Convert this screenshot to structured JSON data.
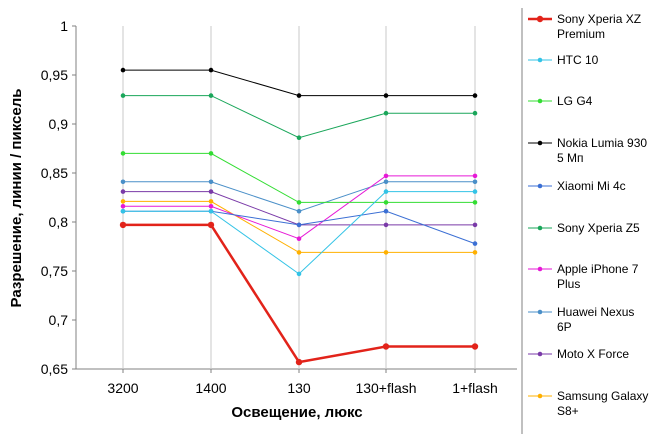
{
  "chart_data": {
    "type": "line",
    "xlabel": "Освещение,  люкс",
    "ylabel": "Разрешение,  линии / пиксель",
    "categories": [
      "3200",
      "1400",
      "130",
      "130+flash",
      "1+flash"
    ],
    "ylim": [
      0.65,
      1.0
    ],
    "yticks": [
      0.65,
      0.7,
      0.75,
      0.8,
      0.85,
      0.9,
      0.95,
      1.0
    ],
    "ytick_labels": [
      "0,65",
      "0,7",
      "0,75",
      "0,8",
      "0,85",
      "0,9",
      "0,95",
      "1"
    ],
    "grid": "vertical",
    "legend_position": "right",
    "series": [
      {
        "name": "Sony Xperia XZ Premium",
        "name_lines": [
          "Sony Xperia XZ",
          "Premium"
        ],
        "color": "#e2231a",
        "width": 2.5,
        "values": [
          0.797,
          0.797,
          0.657,
          0.673,
          0.673
        ]
      },
      {
        "name": "HTC 10",
        "name_lines": [
          "HTC 10"
        ],
        "color": "#33c3e6",
        "width": 1,
        "values": [
          0.811,
          0.811,
          0.747,
          0.831,
          0.831
        ]
      },
      {
        "name": "LG G4",
        "name_lines": [
          "LG G4"
        ],
        "color": "#33dd33",
        "width": 1,
        "values": [
          0.87,
          0.87,
          0.82,
          0.82,
          0.82
        ]
      },
      {
        "name": "Nokia Lumia 930 5 Мп",
        "name_lines": [
          "Nokia Lumia 930",
          "5 Мп"
        ],
        "color": "#000000",
        "width": 1,
        "values": [
          0.955,
          0.955,
          0.929,
          0.929,
          0.929
        ]
      },
      {
        "name": "Xiaomi Mi 4c",
        "name_lines": [
          "Xiaomi Mi 4c"
        ],
        "color": "#3b6fd4",
        "width": 1,
        "values": [
          0.811,
          0.811,
          0.797,
          0.811,
          0.778
        ]
      },
      {
        "name": "Sony Xperia Z5",
        "name_lines": [
          "Sony Xperia Z5"
        ],
        "color": "#1aa65a",
        "width": 1,
        "values": [
          0.929,
          0.929,
          0.886,
          0.911,
          0.911
        ]
      },
      {
        "name": "Apple iPhone 7 Plus",
        "name_lines": [
          "Apple iPhone 7",
          "Plus"
        ],
        "color": "#e61ad6",
        "width": 1,
        "values": [
          0.816,
          0.816,
          0.783,
          0.847,
          0.847
        ]
      },
      {
        "name": "Huawei Nexus 6P",
        "name_lines": [
          "Huawei Nexus",
          "6P"
        ],
        "color": "#4a8fc8",
        "width": 1,
        "values": [
          0.841,
          0.841,
          0.811,
          0.841,
          0.841
        ]
      },
      {
        "name": "Moto X Force",
        "name_lines": [
          "Moto X Force"
        ],
        "color": "#7a3aa8",
        "width": 1,
        "values": [
          0.831,
          0.831,
          0.797,
          0.797,
          0.797
        ]
      },
      {
        "name": "Samsung Galaxy S8+",
        "name_lines": [
          "Samsung Galaxy",
          "S8+"
        ],
        "color": "#ffb000",
        "width": 1,
        "values": [
          0.821,
          0.821,
          0.769,
          0.769,
          0.769
        ]
      }
    ]
  }
}
